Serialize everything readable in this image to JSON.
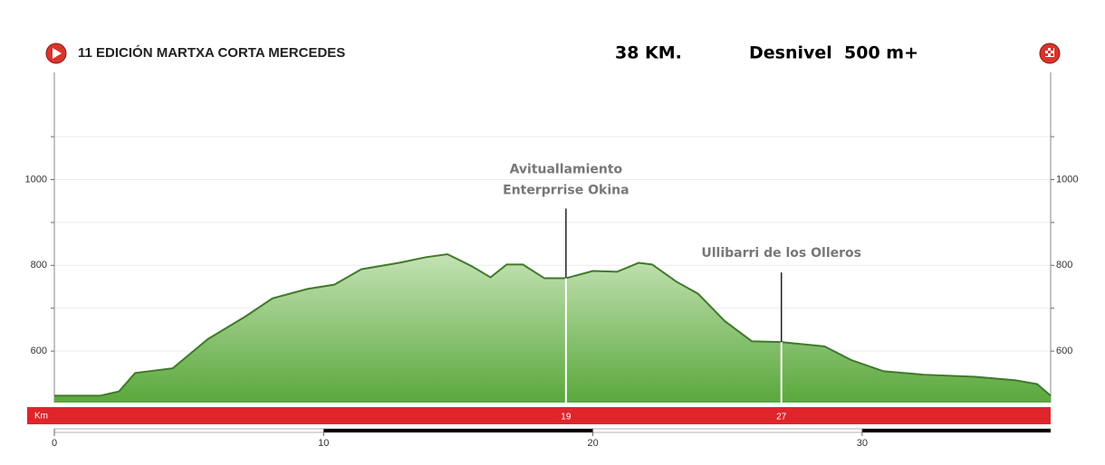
{
  "chart_data": {
    "type": "area",
    "title": "11 EDICIÓN MARTXA CORTA MERCEDES",
    "distance": "38 KM.",
    "climb": "Desnivel  500 m+",
    "x": [
      0,
      1.7,
      2.4,
      3.0,
      4.4,
      5.7,
      7.1,
      8.1,
      9.4,
      10.4,
      11.4,
      12.8,
      13.8,
      14.6,
      15.5,
      16.2,
      16.8,
      17.4,
      18.2,
      19.0,
      20.0,
      20.9,
      21.7,
      22.2,
      23.1,
      23.9,
      24.9,
      25.9,
      27.0,
      28.6,
      29.6,
      30.8,
      32.3,
      34.2,
      35.7,
      36.5,
      37.0
    ],
    "values": [
      496,
      496,
      506,
      549,
      560,
      628,
      681,
      723,
      745,
      755,
      791,
      806,
      819,
      826,
      798,
      772,
      802,
      802,
      770,
      770,
      787,
      785,
      806,
      802,
      762,
      734,
      670,
      623,
      621,
      611,
      579,
      553,
      545,
      540,
      532,
      523,
      496
    ],
    "color": "#5aa83c",
    "xlim": [
      0,
      37
    ],
    "xticks": [
      0,
      10,
      20,
      30
    ],
    "ylim": [
      480,
      1250
    ],
    "yticks": [
      600,
      800,
      1000
    ],
    "minor_yticks": [
      700,
      900,
      1100
    ],
    "km_label": "Km",
    "annotations": [
      {
        "x": 19,
        "lines": [
          "Avituallamiento",
          "Enterprrise Okina"
        ]
      },
      {
        "x": 27,
        "lines": [
          "Ullibarri de los Olleros"
        ]
      }
    ]
  }
}
